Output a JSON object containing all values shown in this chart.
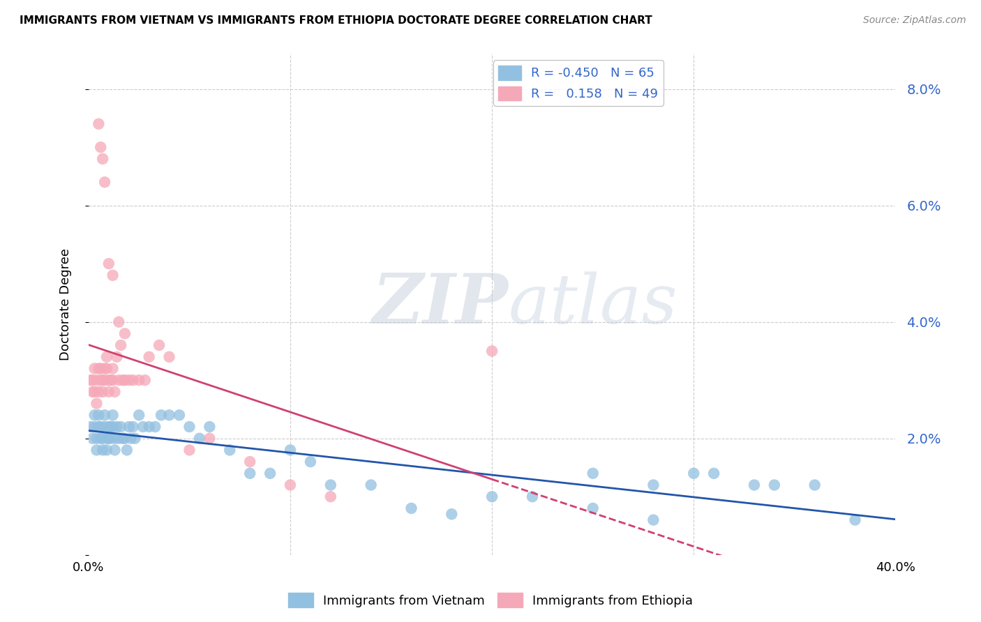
{
  "title": "IMMIGRANTS FROM VIETNAM VS IMMIGRANTS FROM ETHIOPIA DOCTORATE DEGREE CORRELATION CHART",
  "source": "Source: ZipAtlas.com",
  "ylabel": "Doctorate Degree",
  "yticks": [
    0.0,
    0.02,
    0.04,
    0.06,
    0.08
  ],
  "ytick_labels": [
    "",
    "2.0%",
    "4.0%",
    "6.0%",
    "8.0%"
  ],
  "xlim": [
    0.0,
    0.4
  ],
  "ylim": [
    0.0,
    0.086
  ],
  "vietnam_R": -0.45,
  "vietnam_N": 65,
  "ethiopia_R": 0.158,
  "ethiopia_N": 49,
  "vietnam_color": "#92C0E0",
  "ethiopia_color": "#F5A8B8",
  "vietnam_line_color": "#2255AA",
  "ethiopia_line_color": "#D04070",
  "watermark_zip": "ZIP",
  "watermark_atlas": "atlas",
  "legend_vietnam_label": "Immigrants from Vietnam",
  "legend_ethiopia_label": "Immigrants from Ethiopia",
  "vietnam_x": [
    0.001,
    0.002,
    0.003,
    0.003,
    0.004,
    0.004,
    0.005,
    0.005,
    0.006,
    0.006,
    0.007,
    0.007,
    0.008,
    0.008,
    0.009,
    0.009,
    0.01,
    0.01,
    0.011,
    0.011,
    0.012,
    0.012,
    0.013,
    0.013,
    0.014,
    0.015,
    0.016,
    0.017,
    0.018,
    0.019,
    0.02,
    0.021,
    0.022,
    0.023,
    0.025,
    0.027,
    0.03,
    0.033,
    0.036,
    0.04,
    0.045,
    0.05,
    0.055,
    0.06,
    0.07,
    0.08,
    0.09,
    0.1,
    0.11,
    0.12,
    0.14,
    0.16,
    0.18,
    0.2,
    0.22,
    0.25,
    0.28,
    0.3,
    0.33,
    0.36,
    0.25,
    0.28,
    0.31,
    0.34,
    0.38
  ],
  "vietnam_y": [
    0.022,
    0.02,
    0.024,
    0.022,
    0.02,
    0.018,
    0.024,
    0.022,
    0.022,
    0.02,
    0.02,
    0.018,
    0.024,
    0.022,
    0.02,
    0.018,
    0.022,
    0.02,
    0.022,
    0.02,
    0.024,
    0.022,
    0.02,
    0.018,
    0.022,
    0.02,
    0.022,
    0.02,
    0.02,
    0.018,
    0.022,
    0.02,
    0.022,
    0.02,
    0.024,
    0.022,
    0.022,
    0.022,
    0.024,
    0.024,
    0.024,
    0.022,
    0.02,
    0.022,
    0.018,
    0.014,
    0.014,
    0.018,
    0.016,
    0.012,
    0.012,
    0.008,
    0.007,
    0.01,
    0.01,
    0.008,
    0.006,
    0.014,
    0.012,
    0.012,
    0.014,
    0.012,
    0.014,
    0.012,
    0.006
  ],
  "ethiopia_x": [
    0.001,
    0.002,
    0.002,
    0.003,
    0.003,
    0.004,
    0.004,
    0.005,
    0.005,
    0.006,
    0.006,
    0.007,
    0.007,
    0.008,
    0.008,
    0.009,
    0.009,
    0.01,
    0.01,
    0.011,
    0.012,
    0.012,
    0.013,
    0.014,
    0.015,
    0.016,
    0.017,
    0.018,
    0.02,
    0.022,
    0.025,
    0.028,
    0.03,
    0.035,
    0.04,
    0.05,
    0.06,
    0.08,
    0.1,
    0.12,
    0.005,
    0.006,
    0.007,
    0.008,
    0.01,
    0.012,
    0.015,
    0.018,
    0.2
  ],
  "ethiopia_y": [
    0.03,
    0.028,
    0.03,
    0.032,
    0.028,
    0.026,
    0.03,
    0.032,
    0.028,
    0.03,
    0.032,
    0.03,
    0.028,
    0.03,
    0.032,
    0.034,
    0.032,
    0.03,
    0.028,
    0.03,
    0.03,
    0.032,
    0.028,
    0.034,
    0.03,
    0.036,
    0.03,
    0.03,
    0.03,
    0.03,
    0.03,
    0.03,
    0.034,
    0.036,
    0.034,
    0.018,
    0.02,
    0.016,
    0.012,
    0.01,
    0.074,
    0.07,
    0.068,
    0.064,
    0.05,
    0.048,
    0.04,
    0.038,
    0.035
  ]
}
